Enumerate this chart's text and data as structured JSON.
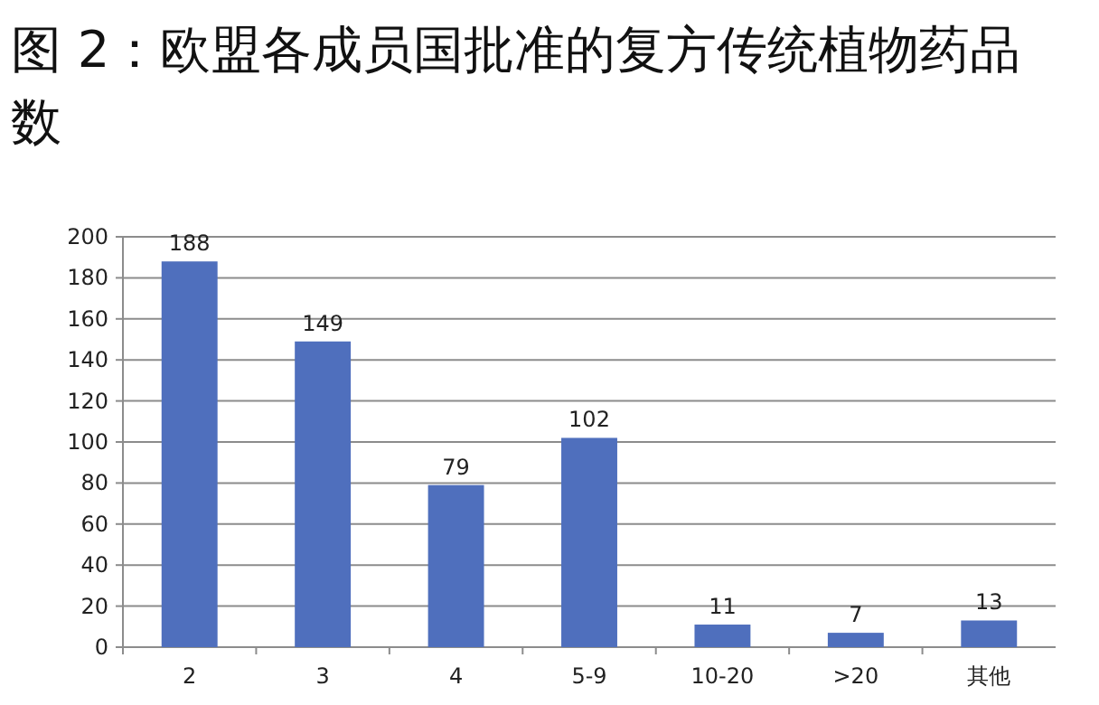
{
  "chart_data": {
    "type": "bar",
    "title": "图 2：欧盟各成员国批准的复方传统植物药品数",
    "categories": [
      "2",
      "3",
      "4",
      "5-9",
      "10-20",
      ">20",
      "其他"
    ],
    "values": [
      188,
      149,
      79,
      102,
      11,
      7,
      13
    ],
    "color": "#4f6fbd",
    "ylim": [
      0,
      200
    ],
    "yticks": [
      0,
      20,
      40,
      60,
      80,
      100,
      120,
      140,
      160,
      180,
      200
    ],
    "grid": "y",
    "data_labels": true
  }
}
